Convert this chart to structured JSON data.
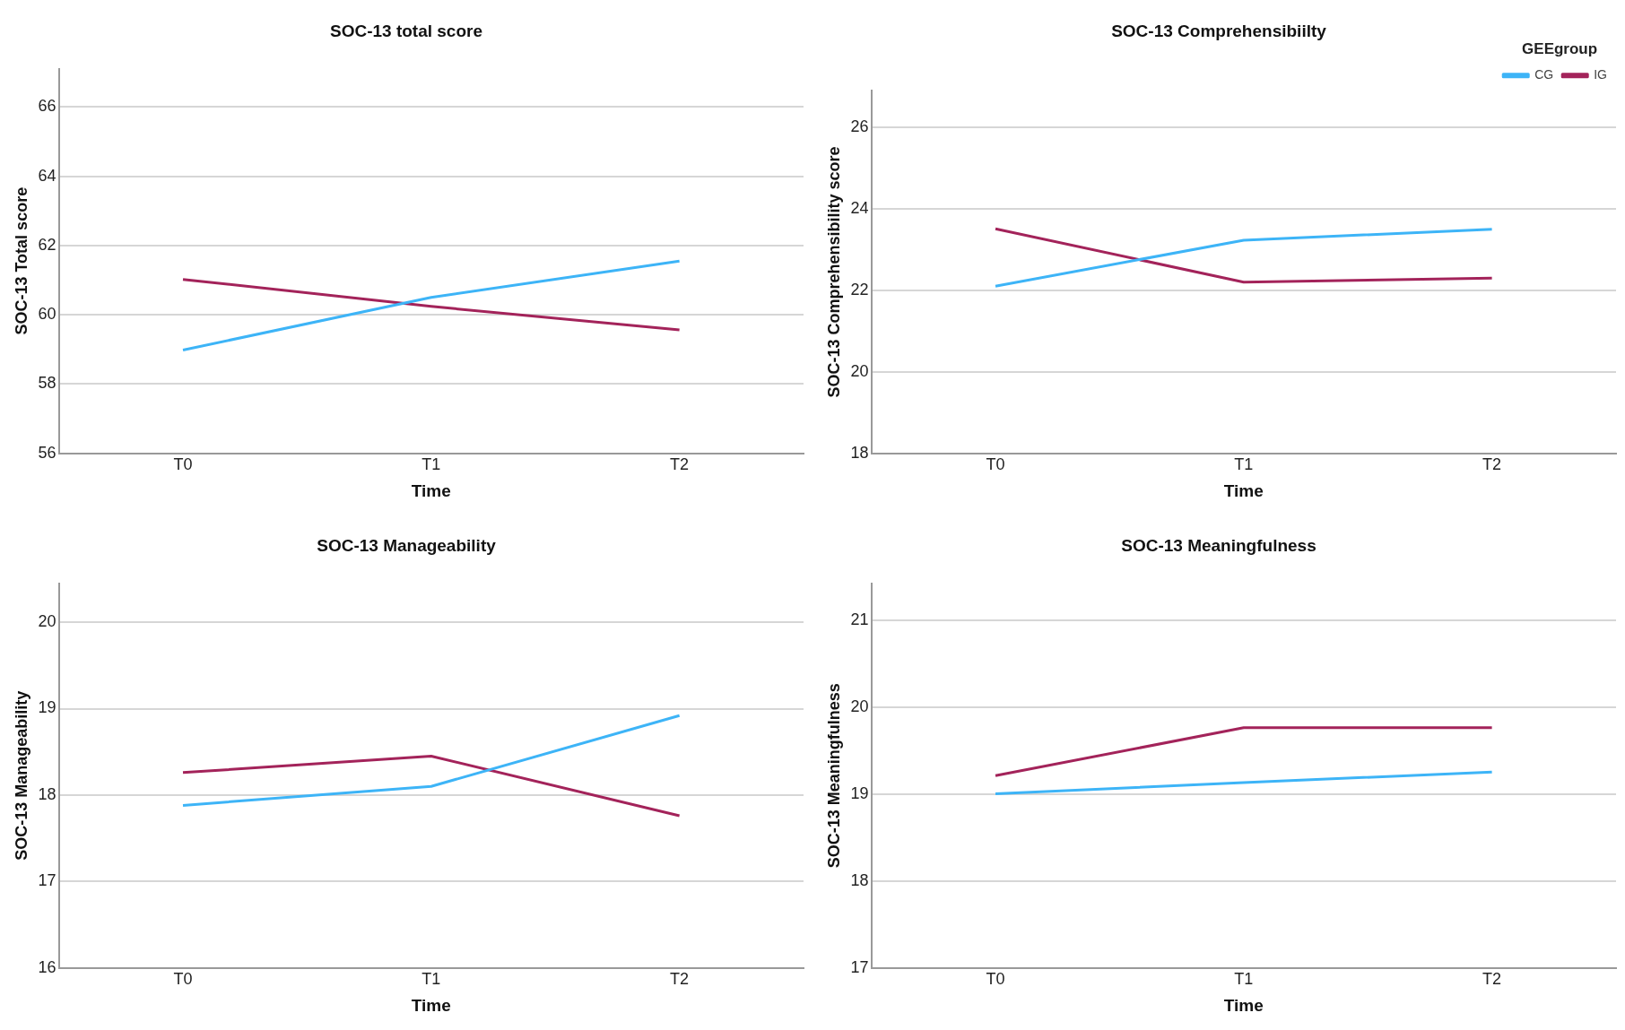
{
  "chart_data": [
    {
      "type": "line",
      "title": "SOC-13 total score",
      "xlabel": "Time",
      "ylabel": "SOC-13 Total score",
      "categories": [
        "T0",
        "T1",
        "T2"
      ],
      "series": [
        {
          "color": "#3db4f7",
          "values": [
            58.98,
            60.5,
            61.55
          ]
        },
        {
          "color": "#a3235a",
          "values": [
            61.02,
            60.24,
            59.56
          ]
        }
      ],
      "ylim": [
        56,
        67.1
      ],
      "yticks": [
        56,
        58,
        60,
        62,
        64,
        66
      ],
      "grid": "y",
      "legend": false,
      "marker": "none",
      "line_style": "solid"
    },
    {
      "type": "line",
      "title": "SOC-13 Comprehensibiilty",
      "xlabel": "Time",
      "ylabel": "SOC-13 Comprehensibility score",
      "legend_title": "GEEgroup",
      "categories": [
        "T0",
        "T1",
        "T2"
      ],
      "series": [
        {
          "name": "CG",
          "color": "#3db4f7",
          "values": [
            22.1,
            23.23,
            23.5
          ]
        },
        {
          "name": "IG",
          "color": "#a3235a",
          "values": [
            23.51,
            22.2,
            22.3
          ]
        }
      ],
      "ylim": [
        18,
        26.9
      ],
      "yticks": [
        18,
        20,
        22,
        24,
        26
      ],
      "grid": "y",
      "legend": "top right",
      "marker": "none",
      "line_style": "solid"
    },
    {
      "type": "line",
      "title": "SOC-13 Manageability",
      "xlabel": "Time",
      "ylabel": "SOC-13 Manageability",
      "categories": [
        "T0",
        "T1",
        "T2"
      ],
      "series": [
        {
          "color": "#3db4f7",
          "values": [
            17.88,
            18.1,
            18.92
          ]
        },
        {
          "color": "#a3235a",
          "values": [
            18.26,
            18.45,
            17.76
          ]
        }
      ],
      "ylim": [
        16,
        20.45
      ],
      "yticks": [
        16,
        17,
        18,
        19,
        20
      ],
      "grid": "y",
      "legend": false,
      "marker": "none",
      "line_style": "solid"
    },
    {
      "type": "line",
      "title": "SOC-13 Meaningfulness",
      "xlabel": "Time",
      "ylabel": "SOC-13 Meaningfulness",
      "categories": [
        "T0",
        "T1",
        "T2"
      ],
      "series": [
        {
          "color": "#3db4f7",
          "values": [
            19.0,
            19.13,
            19.25
          ]
        },
        {
          "color": "#a3235a",
          "values": [
            19.21,
            19.76,
            19.76
          ]
        }
      ],
      "ylim": [
        17,
        21.42
      ],
      "yticks": [
        17,
        18,
        19,
        20,
        21
      ],
      "grid": "y",
      "legend": false,
      "marker": "none",
      "line_style": "solid"
    }
  ]
}
